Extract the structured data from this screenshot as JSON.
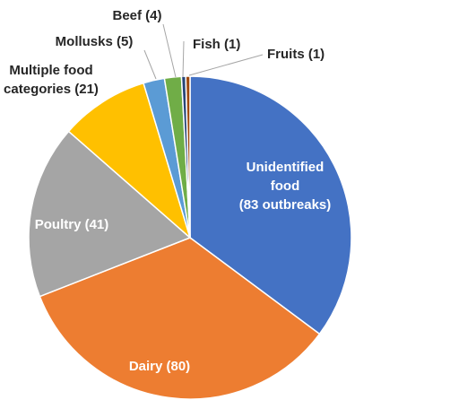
{
  "chart_data": {
    "type": "pie",
    "title": "",
    "unit_label": "outbreaks",
    "slices": [
      {
        "name": "Unidentified food",
        "value": 83,
        "label_lines": [
          "Unidentified",
          "food",
          "(83 outbreaks)"
        ],
        "color": "#4472C4",
        "label_color": "#ffffff",
        "label_placement": "inside"
      },
      {
        "name": "Dairy",
        "value": 80,
        "label_lines": [
          "Dairy (80)"
        ],
        "color": "#ED7D31",
        "label_color": "#ffffff",
        "label_placement": "inside"
      },
      {
        "name": "Poultry",
        "value": 41,
        "label_lines": [
          "Poultry (41)"
        ],
        "color": "#A5A5A5",
        "label_color": "#ffffff",
        "label_placement": "inside"
      },
      {
        "name": "Multiple food categories",
        "value": 21,
        "label_lines": [
          "Multiple food",
          "categories (21)"
        ],
        "color": "#FFC000",
        "label_color": "#262626",
        "label_placement": "outside"
      },
      {
        "name": "Mollusks",
        "value": 5,
        "label_lines": [
          "Mollusks (5)"
        ],
        "color": "#5B9BD5",
        "label_color": "#262626",
        "label_placement": "outside"
      },
      {
        "name": "Beef",
        "value": 4,
        "label_lines": [
          "Beef (4)"
        ],
        "color": "#70AD47",
        "label_color": "#262626",
        "label_placement": "outside"
      },
      {
        "name": "Fish",
        "value": 1,
        "label_lines": [
          "Fish (1)"
        ],
        "color": "#264478",
        "label_color": "#262626",
        "label_placement": "outside"
      },
      {
        "name": "Fruits",
        "value": 1,
        "label_lines": [
          "Fruits (1)"
        ],
        "color": "#9E480E",
        "label_color": "#262626",
        "label_placement": "outside"
      }
    ],
    "start_angle": "12 o'clock",
    "direction": "clockwise",
    "legend": "none"
  }
}
